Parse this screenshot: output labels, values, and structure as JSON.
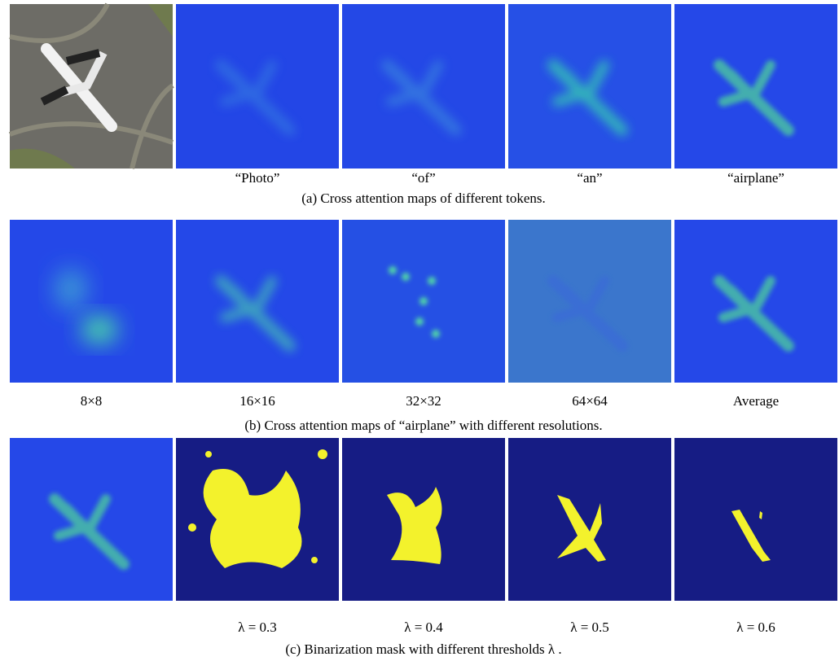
{
  "rows": [
    {
      "labels": [
        "“Photo”",
        "“of”",
        "“an”",
        "“airplane”"
      ],
      "caption": "(a) Cross attention maps of different tokens."
    },
    {
      "labels": [
        "8×8",
        "16×16",
        "32×32",
        "64×64",
        "Average"
      ],
      "caption": "(b) Cross attention maps of “airplane” with different resolutions."
    },
    {
      "labels": [
        "λ = 0.3",
        "λ = 0.4",
        "λ = 0.5",
        "λ = 0.6"
      ],
      "caption": "(c) Binarization mask with different thresholds λ ."
    }
  ]
}
